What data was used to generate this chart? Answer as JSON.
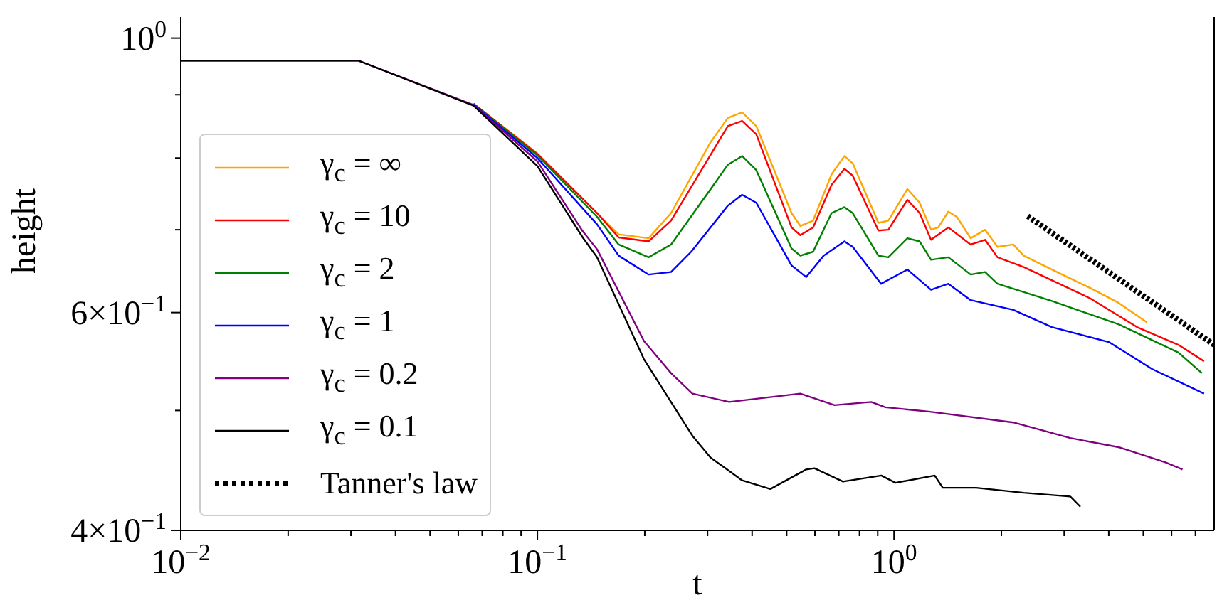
{
  "chart_data": {
    "type": "line",
    "xlabel": "t",
    "ylabel": "height",
    "log": "xy",
    "grid": false,
    "legend": "left",
    "marker": "none",
    "line_style": "solid",
    "xlim": [
      0.01,
      7.9
    ],
    "ylim": [
      0.4,
      1.04
    ],
    "xticks": [
      {
        "value": 0.01,
        "label": "10$^{−2}$"
      },
      {
        "value": 0.02,
        "label": null
      },
      {
        "value": 0.03,
        "label": null
      },
      {
        "value": 0.04,
        "label": null
      },
      {
        "value": 0.05,
        "label": null
      },
      {
        "value": 0.06,
        "label": null
      },
      {
        "value": 0.07,
        "label": null
      },
      {
        "value": 0.08,
        "label": null
      },
      {
        "value": 0.09,
        "label": null
      },
      {
        "value": 0.1,
        "label": "10$^{−1}$"
      },
      {
        "value": 0.2,
        "label": null
      },
      {
        "value": 0.3,
        "label": null
      },
      {
        "value": 0.4,
        "label": null
      },
      {
        "value": 0.5,
        "label": null
      },
      {
        "value": 0.6,
        "label": null
      },
      {
        "value": 0.7,
        "label": null
      },
      {
        "value": 0.8,
        "label": null
      },
      {
        "value": 0.9,
        "label": null
      },
      {
        "value": 1,
        "label": "10$^{0}$"
      },
      {
        "value": 2,
        "label": null
      },
      {
        "value": 3,
        "label": null
      },
      {
        "value": 4,
        "label": null
      },
      {
        "value": 5,
        "label": null
      },
      {
        "value": 6,
        "label": null
      },
      {
        "value": 7,
        "label": null
      }
    ],
    "yticks": [
      {
        "value": 0.4,
        "label": "4×10$^{−1}$"
      },
      {
        "value": 0.5,
        "label": null
      },
      {
        "value": 0.6,
        "label": "6×10$^{−1}$"
      },
      {
        "value": 0.7,
        "label": null
      },
      {
        "value": 0.8,
        "label": null
      },
      {
        "value": 0.9,
        "label": null
      },
      {
        "value": 1,
        "label": "10$^{0}$"
      }
    ],
    "series": [
      {
        "name": "γ$_{c}$ = ∞",
        "color": "#ffa500",
        "x": [
          0.0662,
          0.1,
          0.147,
          0.169,
          0.205,
          0.237,
          0.306,
          0.342,
          0.375,
          0.411,
          0.516,
          0.546,
          0.593,
          0.668,
          0.726,
          0.766,
          0.904,
          0.964,
          1.09,
          1.18,
          1.27,
          1.33,
          1.42,
          1.5,
          1.64,
          1.8,
          1.95,
          2.16,
          2.31,
          2.77,
          3.55,
          4.26,
          5.12
        ],
        "values": [
          0.885,
          0.807,
          0.722,
          0.694,
          0.689,
          0.722,
          0.824,
          0.862,
          0.871,
          0.849,
          0.722,
          0.705,
          0.712,
          0.776,
          0.803,
          0.792,
          0.709,
          0.712,
          0.755,
          0.736,
          0.7,
          0.703,
          0.724,
          0.717,
          0.689,
          0.7,
          0.678,
          0.681,
          0.667,
          0.65,
          0.628,
          0.611,
          0.589
        ]
      },
      {
        "name": "γ$_{c}$ = 10",
        "color": "#ff0000",
        "x": [
          0.0662,
          0.1,
          0.147,
          0.169,
          0.205,
          0.237,
          0.342,
          0.375,
          0.411,
          0.516,
          0.546,
          0.593,
          0.668,
          0.726,
          0.766,
          0.904,
          0.964,
          1.09,
          1.18,
          1.27,
          1.42,
          1.64,
          1.8,
          1.95,
          2.31,
          3.55,
          4.8,
          6.27,
          7.4
        ],
        "values": [
          0.885,
          0.806,
          0.722,
          0.69,
          0.685,
          0.712,
          0.849,
          0.857,
          0.836,
          0.703,
          0.693,
          0.703,
          0.761,
          0.784,
          0.774,
          0.699,
          0.7,
          0.74,
          0.722,
          0.687,
          0.703,
          0.681,
          0.687,
          0.665,
          0.653,
          0.616,
          0.584,
          0.565,
          0.548
        ]
      },
      {
        "name": "γ$_{c}$ = 2",
        "color": "#008000",
        "x": [
          0.0662,
          0.1,
          0.147,
          0.169,
          0.205,
          0.237,
          0.306,
          0.342,
          0.375,
          0.411,
          0.516,
          0.546,
          0.593,
          0.668,
          0.726,
          0.766,
          0.904,
          0.964,
          1.09,
          1.18,
          1.27,
          1.42,
          1.64,
          1.8,
          1.95,
          2.77,
          4.26,
          6.27,
          7.3
        ],
        "values": [
          0.885,
          0.804,
          0.717,
          0.681,
          0.665,
          0.681,
          0.755,
          0.79,
          0.803,
          0.782,
          0.676,
          0.667,
          0.672,
          0.722,
          0.73,
          0.722,
          0.667,
          0.665,
          0.689,
          0.685,
          0.662,
          0.665,
          0.644,
          0.647,
          0.633,
          0.613,
          0.587,
          0.557,
          0.536
        ]
      },
      {
        "name": "γ$_{c}$ = 1",
        "color": "#0000ff",
        "x": [
          0.0662,
          0.1,
          0.147,
          0.169,
          0.205,
          0.237,
          0.27,
          0.342,
          0.375,
          0.411,
          0.516,
          0.567,
          0.635,
          0.726,
          0.766,
          0.92,
          1.09,
          1.27,
          1.42,
          1.64,
          2.16,
          2.77,
          4.0,
          5.3,
          7.4
        ],
        "values": [
          0.884,
          0.8,
          0.707,
          0.667,
          0.644,
          0.647,
          0.672,
          0.732,
          0.747,
          0.736,
          0.655,
          0.641,
          0.667,
          0.685,
          0.678,
          0.633,
          0.65,
          0.626,
          0.633,
          0.614,
          0.603,
          0.584,
          0.568,
          0.54,
          0.516
        ]
      },
      {
        "name": "γ$_{c}$ = 0.2",
        "color": "#800080",
        "x": [
          0.01,
          0.0315,
          0.0662,
          0.1,
          0.134,
          0.147,
          0.199,
          0.237,
          0.272,
          0.345,
          0.546,
          0.681,
          0.863,
          0.946,
          1.25,
          2.16,
          3.12,
          4.26,
          5.77,
          6.44
        ],
        "values": [
          0.959,
          0.959,
          0.883,
          0.795,
          0.698,
          0.675,
          0.569,
          0.536,
          0.516,
          0.508,
          0.516,
          0.505,
          0.508,
          0.503,
          0.499,
          0.489,
          0.475,
          0.467,
          0.454,
          0.448
        ]
      },
      {
        "name": "γ$_{c}$ = 0.1",
        "color": "#000000",
        "x": [
          0.01,
          0.0315,
          0.0662,
          0.1,
          0.134,
          0.147,
          0.199,
          0.272,
          0.306,
          0.375,
          0.45,
          0.567,
          0.598,
          0.719,
          0.921,
          1.01,
          1.3,
          1.37,
          1.7,
          2.31,
          3.12,
          3.33
        ],
        "values": [
          0.959,
          0.959,
          0.882,
          0.788,
          0.69,
          0.665,
          0.55,
          0.477,
          0.458,
          0.439,
          0.432,
          0.448,
          0.449,
          0.438,
          0.443,
          0.437,
          0.443,
          0.433,
          0.433,
          0.429,
          0.426,
          0.418
        ]
      },
      {
        "name": "Tanner's law",
        "color": "#000000",
        "line_style": "dotted",
        "x": [
          2.37,
          7.9
        ],
        "values": [
          0.718,
          0.565
        ]
      }
    ]
  }
}
